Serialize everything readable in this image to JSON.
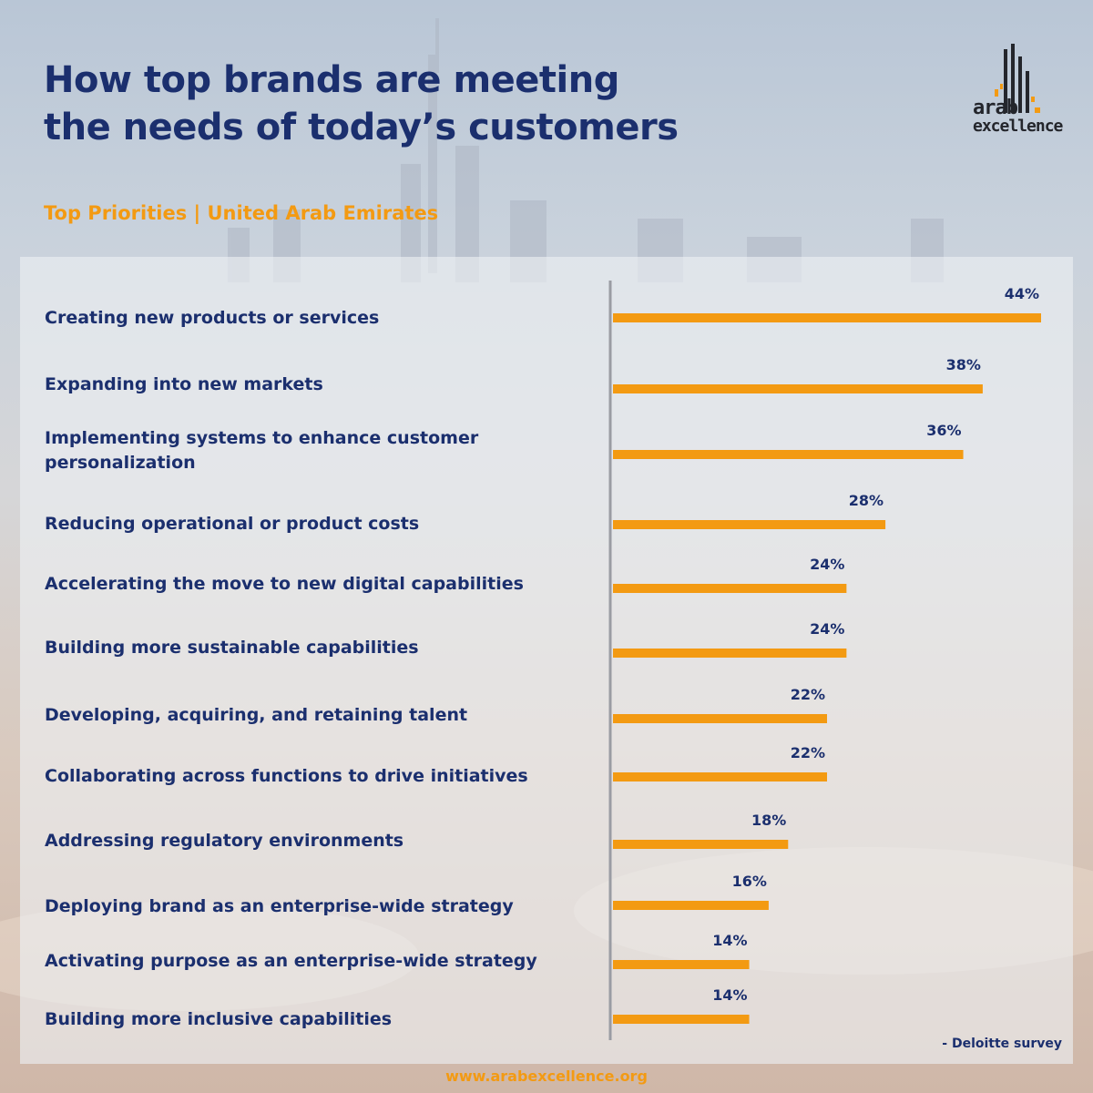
{
  "title_line1": "How top brands are meeting",
  "title_line2": "the needs of today’s customers",
  "subtitle": "Top Priorities | United Arab Emirates",
  "logo": {
    "line1": "arab",
    "line2": "excellence"
  },
  "source_note": "- Deloitte survey",
  "footer_url": "www.arabexcellence.org",
  "colors": {
    "title": "#1b2f6e",
    "accent": "#f39a12",
    "bar": "#f39a12",
    "axis": "#9a9ca3"
  },
  "chart_data": {
    "type": "bar",
    "orientation": "horizontal",
    "title": "Top Priorities | United Arab Emirates",
    "categories": [
      "Creating new products or services",
      "Expanding into new markets",
      "Implementing systems to enhance customer personalization",
      "Reducing operational or product costs",
      "Accelerating the move to new digital capabilities",
      "Building more sustainable capabilities",
      "Developing, acquiring, and retaining talent",
      "Collaborating across functions to drive initiatives",
      "Addressing regulatory environments",
      "Deploying brand as an enterprise-wide strategy",
      "Activating purpose as an enterprise-wide strategy",
      "Building more inclusive capabilities"
    ],
    "values": [
      44,
      38,
      36,
      28,
      24,
      24,
      22,
      22,
      18,
      16,
      14,
      14
    ],
    "value_labels": [
      "44%",
      "38%",
      "36%",
      "28%",
      "24%",
      "24%",
      "22%",
      "22%",
      "18%",
      "16%",
      "14%",
      "14%"
    ],
    "unit": "%",
    "xlim": [
      0,
      44
    ],
    "grid": false,
    "legend": "none"
  }
}
